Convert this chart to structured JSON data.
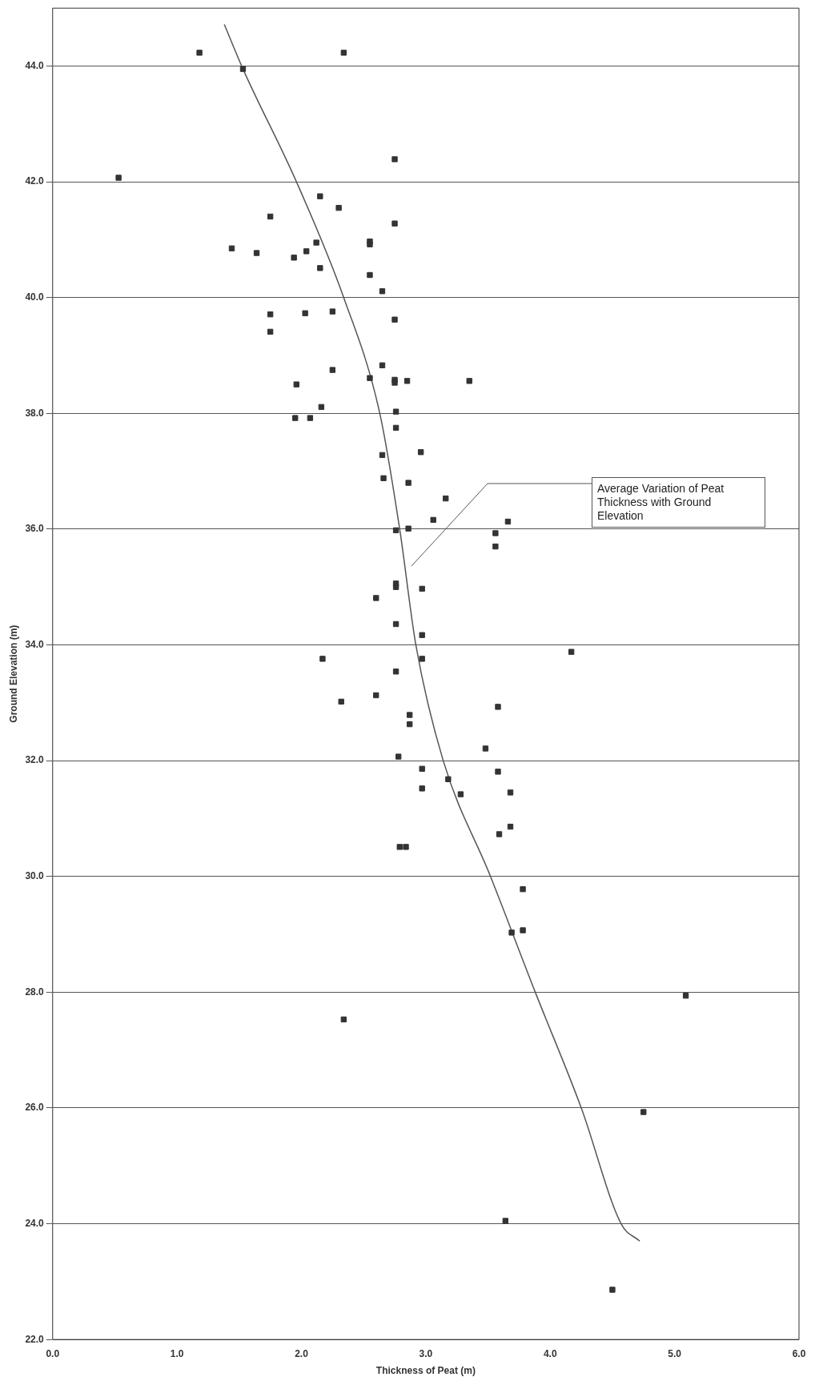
{
  "chart_data": {
    "type": "scatter",
    "xlabel": "Thickness of Peat (m)",
    "ylabel": "Ground Elevation (m)",
    "xlim": [
      0,
      6
    ],
    "ylim": [
      22,
      45
    ],
    "xticks": [
      {
        "value": 0,
        "label": "0.0"
      },
      {
        "value": 1,
        "label": "1.0"
      },
      {
        "value": 2,
        "label": "2.0"
      },
      {
        "value": 3,
        "label": "3.0"
      },
      {
        "value": 4,
        "label": "4.0"
      },
      {
        "value": 5,
        "label": "5.0"
      },
      {
        "value": 6,
        "label": "6.0"
      }
    ],
    "yticks": [
      {
        "value": 22,
        "label": "22.0"
      },
      {
        "value": 24,
        "label": "24.0"
      },
      {
        "value": 26,
        "label": "26.0"
      },
      {
        "value": 28,
        "label": "28.0"
      },
      {
        "value": 30,
        "label": "30.0"
      },
      {
        "value": 32,
        "label": "32.0"
      },
      {
        "value": 34,
        "label": "34.0"
      },
      {
        "value": 36,
        "label": "36.0"
      },
      {
        "value": 38,
        "label": "38.0"
      },
      {
        "value": 40,
        "label": "40.0"
      },
      {
        "value": 42,
        "label": "42.0"
      },
      {
        "value": 44,
        "label": "44.0"
      }
    ],
    "grid": "y",
    "legend": false,
    "series": [
      {
        "marker": "square",
        "color": "#333333",
        "x": [
          1.18,
          1.53,
          2.34,
          0.53,
          2.75,
          2.15,
          2.3,
          1.75,
          2.75,
          2.55,
          2.55,
          2.12,
          1.44,
          1.64,
          2.04,
          1.94,
          2.15,
          2.55,
          2.65,
          1.75,
          2.03,
          2.25,
          2.75,
          1.75,
          2.65,
          2.25,
          2.55,
          2.75,
          2.75,
          2.85,
          3.35,
          1.96,
          2.16,
          1.95,
          2.07,
          2.76,
          2.76,
          2.96,
          2.65,
          2.66,
          2.86,
          3.16,
          3.06,
          3.66,
          2.76,
          2.86,
          3.56,
          3.56,
          2.76,
          2.76,
          2.97,
          2.6,
          2.76,
          2.97,
          4.17,
          2.17,
          2.97,
          2.76,
          2.6,
          2.32,
          3.58,
          2.87,
          2.87,
          3.48,
          2.78,
          2.97,
          3.58,
          3.18,
          2.97,
          3.28,
          3.68,
          3.68,
          3.59,
          2.79,
          2.84,
          3.78,
          3.69,
          3.78,
          5.09,
          2.34,
          4.75,
          3.64,
          4.5
        ],
        "values": [
          44.23,
          43.95,
          44.23,
          42.07,
          42.39,
          41.75,
          41.55,
          41.4,
          41.28,
          40.97,
          40.92,
          40.95,
          40.85,
          40.77,
          40.8,
          40.69,
          40.51,
          40.39,
          40.11,
          39.71,
          39.73,
          39.76,
          39.62,
          39.41,
          38.83,
          38.75,
          38.61,
          38.58,
          38.53,
          38.56,
          38.56,
          38.5,
          38.11,
          37.92,
          37.92,
          38.03,
          37.75,
          37.33,
          37.28,
          36.88,
          36.8,
          36.53,
          36.16,
          36.13,
          35.98,
          36.01,
          35.93,
          35.7,
          35.06,
          35.0,
          34.97,
          34.81,
          34.36,
          34.17,
          33.88,
          33.76,
          33.76,
          33.54,
          33.13,
          33.02,
          32.93,
          32.79,
          32.63,
          32.21,
          32.07,
          31.86,
          31.81,
          31.68,
          31.52,
          31.42,
          31.45,
          30.86,
          30.73,
          30.51,
          30.51,
          29.78,
          29.03,
          29.07,
          27.94,
          27.53,
          25.93,
          24.05,
          22.86
        ]
      },
      {
        "type": "line",
        "color": "#555555",
        "x": [
          1.38,
          1.53,
          1.96,
          2.34,
          2.63,
          2.79,
          2.92,
          3.14,
          3.52,
          3.88,
          4.25,
          4.57,
          4.72
        ],
        "values": [
          44.72,
          43.95,
          42.0,
          40.0,
          38.0,
          36.0,
          34.0,
          32.0,
          30.0,
          28.0,
          26.0,
          24.0,
          23.7
        ]
      }
    ],
    "annotations": [
      "Average Variation of Peat Thickness with Ground Elevation"
    ]
  }
}
